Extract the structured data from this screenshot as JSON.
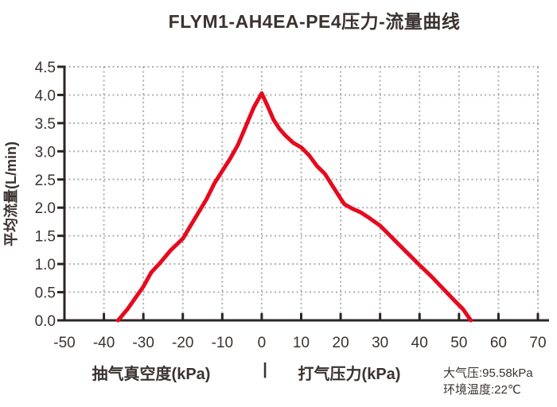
{
  "title": "FLYM1-AH4EA-PE4压力-流量曲线",
  "x_axis": {
    "caption_left": "抽气真空度(kPa)",
    "caption_separator": "|",
    "caption_right": "打气压力(kPa)",
    "tick_labels": [
      "-50",
      "-40",
      "-30",
      "-20",
      "-10",
      "0",
      "10",
      "20",
      "30",
      "40",
      "50",
      "60",
      "70"
    ],
    "tick_values": [
      -50,
      -40,
      -30,
      -20,
      -10,
      0,
      10,
      20,
      30,
      40,
      50,
      60,
      70
    ]
  },
  "y_axis": {
    "label": "平均流量(L/min)",
    "tick_labels": [
      "0.0",
      "0.5",
      "1.0",
      "1.5",
      "2.0",
      "2.5",
      "3.0",
      "3.5",
      "4.0",
      "4.5"
    ],
    "tick_values": [
      0,
      0.5,
      1,
      1.5,
      2,
      2.5,
      3,
      3.5,
      4,
      4.5
    ]
  },
  "annotations": {
    "atmospheric_pressure": "大气压:95.58kPa",
    "ambient_temperature": "环境温度:22℃"
  },
  "colors": {
    "curve": "#e60a1e",
    "axis": "#2b2523",
    "grid": "#b0b0b0",
    "text": "#3a3330",
    "background": "#ffffff"
  },
  "chart_data": {
    "type": "line",
    "title": "FLYM1-AH4EA-PE4压力-流量曲线",
    "xlabel": "抽气真空度(kPa) | 打气压力(kPa)",
    "ylabel": "平均流量(L/min)",
    "xlim": [
      -50,
      70
    ],
    "ylim": [
      0,
      4.5
    ],
    "grid": "dotted",
    "legend": "none",
    "series": [
      {
        "name": "压力-流量曲线",
        "color": "#e60a1e",
        "points": [
          [
            -36.4,
            0
          ],
          [
            -34,
            0.2
          ],
          [
            -32,
            0.4
          ],
          [
            -30,
            0.6
          ],
          [
            -28,
            0.85
          ],
          [
            -26,
            1.0
          ],
          [
            -23,
            1.25
          ],
          [
            -20,
            1.45
          ],
          [
            -17,
            1.8
          ],
          [
            -14,
            2.15
          ],
          [
            -12,
            2.43
          ],
          [
            -10,
            2.65
          ],
          [
            -8,
            2.87
          ],
          [
            -6,
            3.12
          ],
          [
            -4,
            3.45
          ],
          [
            -2,
            3.78
          ],
          [
            0,
            4.03
          ],
          [
            1.5,
            3.8
          ],
          [
            3,
            3.56
          ],
          [
            4.5,
            3.4
          ],
          [
            6,
            3.28
          ],
          [
            8,
            3.15
          ],
          [
            10,
            3.07
          ],
          [
            12,
            2.93
          ],
          [
            14,
            2.74
          ],
          [
            16,
            2.6
          ],
          [
            18,
            2.38
          ],
          [
            20,
            2.16
          ],
          [
            21,
            2.06
          ],
          [
            23,
            1.98
          ],
          [
            25,
            1.92
          ],
          [
            27,
            1.83
          ],
          [
            30,
            1.68
          ],
          [
            33,
            1.47
          ],
          [
            36,
            1.26
          ],
          [
            40,
            0.98
          ],
          [
            43,
            0.78
          ],
          [
            46,
            0.56
          ],
          [
            49,
            0.34
          ],
          [
            51,
            0.2
          ],
          [
            53,
            0
          ]
        ]
      }
    ]
  }
}
